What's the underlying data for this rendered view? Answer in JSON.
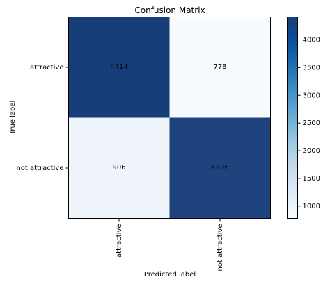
{
  "chart_data": {
    "type": "heatmap",
    "title": "Confusion Matrix",
    "xlabel": "Predicted label",
    "ylabel": "True label",
    "x_categories": [
      "attractive",
      "not attractive"
    ],
    "y_categories": [
      "attractive",
      "not attractive"
    ],
    "values": [
      [
        4414,
        778
      ],
      [
        906,
        4286
      ]
    ],
    "colormap": "Blues",
    "color_low": "#f7fbff",
    "color_high": "#173d78",
    "color_range": [
      778,
      4414
    ],
    "colorbar_ticks": [
      1000,
      1500,
      2000,
      2500,
      3000,
      3500,
      4000
    ],
    "text_color_dark_cell": "#ffffff",
    "text_color_light_cell": "#000000"
  }
}
